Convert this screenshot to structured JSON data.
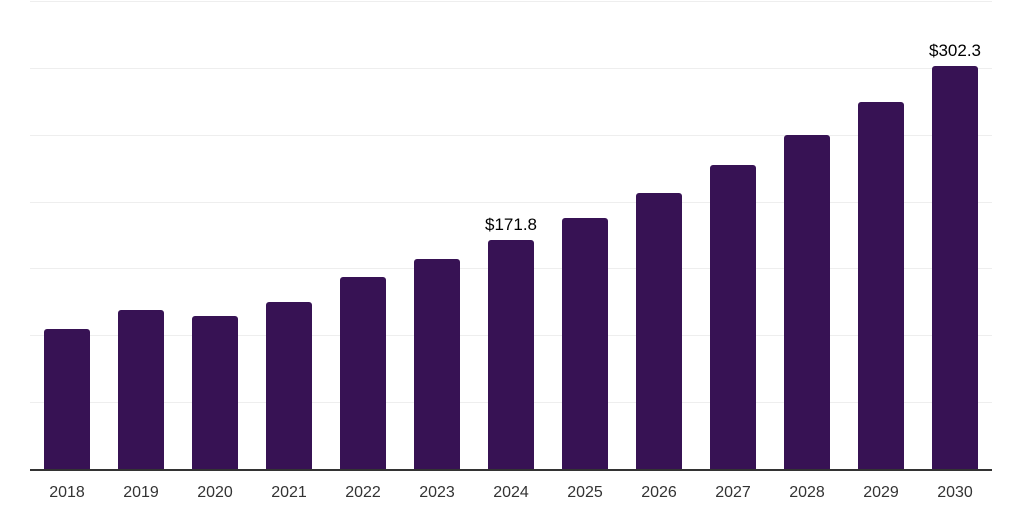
{
  "page": {
    "background": "#ffffff"
  },
  "chart_data": {
    "type": "bar",
    "title": "",
    "categories": [
      "2018",
      "2019",
      "2020",
      "2021",
      "2022",
      "2023",
      "2024",
      "2025",
      "2026",
      "2027",
      "2028",
      "2029",
      "2030"
    ],
    "values": [
      105.4,
      120.0,
      114.9,
      126.0,
      144.0,
      157.5,
      171.8,
      188.8,
      207.4,
      227.9,
      250.4,
      275.1,
      302.3
    ],
    "point_labels": [
      "",
      "",
      "",
      "",
      "",
      "",
      "$171.8",
      "",
      "",
      "",
      "",
      "",
      "$302.3"
    ],
    "xlabel": "",
    "ylabel": "",
    "ylim": [
      0,
      350
    ],
    "gridline_step": 50,
    "grid": "horizontal-only",
    "legend": "none",
    "y_axis_tick_labels_visible": false,
    "colors": {
      "bar_fill": "#371254",
      "gridline": "#eeeeee",
      "axis_line": "#333333",
      "tick_label": "#333333",
      "data_label": "#000000",
      "background": "#ffffff"
    }
  }
}
